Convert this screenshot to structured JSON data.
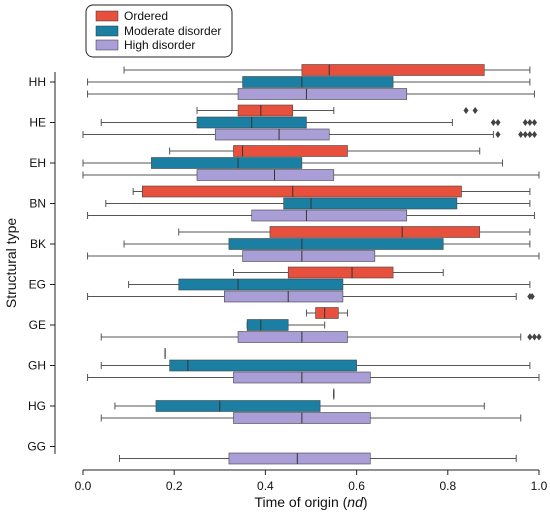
{
  "chart_data": {
    "type": "box",
    "orientation": "horizontal",
    "xlabel_main": "Time of origin (",
    "xlabel_italic": "nd",
    "xlabel_end": ")",
    "ylabel": "Structural type",
    "xlim": [
      0.0,
      1.0
    ],
    "xticks": [
      "0.0",
      "0.2",
      "0.4",
      "0.6",
      "0.8",
      "1.0"
    ],
    "xtick_values": [
      0.0,
      0.2,
      0.4,
      0.6,
      0.8,
      1.0
    ],
    "categories": [
      "HH",
      "HE",
      "EH",
      "BN",
      "BK",
      "EG",
      "GE",
      "GH",
      "HG",
      "GG"
    ],
    "legend_position": "top-left",
    "series": [
      {
        "name": "Ordered",
        "color": "#e8503e",
        "boxes": [
          {
            "category": "HH",
            "whisker_low": 0.09,
            "q1": 0.48,
            "median": 0.54,
            "q3": 0.88,
            "whisker_high": 0.98,
            "outliers": []
          },
          {
            "category": "HE",
            "whisker_low": 0.25,
            "q1": 0.34,
            "median": 0.39,
            "q3": 0.46,
            "whisker_high": 0.55,
            "outliers": [
              0.84,
              0.86
            ]
          },
          {
            "category": "EH",
            "whisker_low": 0.19,
            "q1": 0.33,
            "median": 0.35,
            "q3": 0.58,
            "whisker_high": 0.87,
            "outliers": []
          },
          {
            "category": "BN",
            "whisker_low": 0.11,
            "q1": 0.13,
            "median": 0.46,
            "q3": 0.83,
            "whisker_high": 0.98,
            "outliers": []
          },
          {
            "category": "BK",
            "whisker_low": 0.21,
            "q1": 0.41,
            "median": 0.7,
            "q3": 0.87,
            "whisker_high": 0.98,
            "outliers": []
          },
          {
            "category": "EG",
            "whisker_low": 0.33,
            "q1": 0.45,
            "median": 0.59,
            "q3": 0.68,
            "whisker_high": 0.79,
            "outliers": []
          },
          {
            "category": "GE",
            "whisker_low": 0.49,
            "q1": 0.51,
            "median": 0.53,
            "q3": 0.56,
            "whisker_high": 0.58,
            "outliers": []
          },
          {
            "category": "GH",
            "whisker_low": 0.18,
            "q1": 0.18,
            "median": 0.18,
            "q3": 0.18,
            "whisker_high": 0.18,
            "outliers": []
          },
          {
            "category": "HG",
            "whisker_low": 0.55,
            "q1": 0.55,
            "median": 0.55,
            "q3": 0.55,
            "whisker_high": 0.55,
            "outliers": []
          }
        ]
      },
      {
        "name": "Moderate disorder",
        "color": "#1a7fa3",
        "boxes": [
          {
            "category": "HH",
            "whisker_low": 0.01,
            "q1": 0.35,
            "median": 0.48,
            "q3": 0.68,
            "whisker_high": 0.98,
            "outliers": []
          },
          {
            "category": "HE",
            "whisker_low": 0.04,
            "q1": 0.25,
            "median": 0.37,
            "q3": 0.49,
            "whisker_high": 0.81,
            "outliers": [
              0.9,
              0.91,
              0.97,
              0.98,
              0.99
            ]
          },
          {
            "category": "EH",
            "whisker_low": 0.0,
            "q1": 0.15,
            "median": 0.34,
            "q3": 0.48,
            "whisker_high": 0.92,
            "outliers": []
          },
          {
            "category": "BN",
            "whisker_low": 0.05,
            "q1": 0.44,
            "median": 0.5,
            "q3": 0.82,
            "whisker_high": 0.98,
            "outliers": []
          },
          {
            "category": "BK",
            "whisker_low": 0.09,
            "q1": 0.32,
            "median": 0.48,
            "q3": 0.79,
            "whisker_high": 0.98,
            "outliers": []
          },
          {
            "category": "EG",
            "whisker_low": 0.1,
            "q1": 0.21,
            "median": 0.34,
            "q3": 0.57,
            "whisker_high": 0.98,
            "outliers": []
          },
          {
            "category": "GE",
            "whisker_low": 0.36,
            "q1": 0.36,
            "median": 0.39,
            "q3": 0.45,
            "whisker_high": 0.53,
            "outliers": []
          },
          {
            "category": "GH",
            "whisker_low": 0.04,
            "q1": 0.19,
            "median": 0.23,
            "q3": 0.6,
            "whisker_high": 0.98,
            "outliers": []
          },
          {
            "category": "HG",
            "whisker_low": 0.07,
            "q1": 0.16,
            "median": 0.3,
            "q3": 0.52,
            "whisker_high": 0.88,
            "outliers": []
          }
        ]
      },
      {
        "name": "High disorder",
        "color": "#a99ed6",
        "boxes": [
          {
            "category": "HH",
            "whisker_low": 0.01,
            "q1": 0.34,
            "median": 0.49,
            "q3": 0.71,
            "whisker_high": 0.99,
            "outliers": []
          },
          {
            "category": "HE",
            "whisker_low": 0.0,
            "q1": 0.29,
            "median": 0.43,
            "q3": 0.54,
            "whisker_high": 0.9,
            "outliers": [
              0.91,
              0.96,
              0.97,
              0.98,
              0.99
            ]
          },
          {
            "category": "EH",
            "whisker_low": 0.0,
            "q1": 0.25,
            "median": 0.42,
            "q3": 0.55,
            "whisker_high": 1.0,
            "outliers": []
          },
          {
            "category": "BN",
            "whisker_low": 0.01,
            "q1": 0.37,
            "median": 0.49,
            "q3": 0.71,
            "whisker_high": 0.99,
            "outliers": []
          },
          {
            "category": "BK",
            "whisker_low": 0.01,
            "q1": 0.35,
            "median": 0.48,
            "q3": 0.64,
            "whisker_high": 1.0,
            "outliers": []
          },
          {
            "category": "EG",
            "whisker_low": 0.01,
            "q1": 0.31,
            "median": 0.45,
            "q3": 0.57,
            "whisker_high": 0.95,
            "outliers": [
              0.98,
              0.985
            ]
          },
          {
            "category": "GE",
            "whisker_low": 0.04,
            "q1": 0.34,
            "median": 0.48,
            "q3": 0.58,
            "whisker_high": 0.96,
            "outliers": [
              0.98,
              0.99,
              1.0
            ]
          },
          {
            "category": "GH",
            "whisker_low": 0.01,
            "q1": 0.33,
            "median": 0.48,
            "q3": 0.63,
            "whisker_high": 1.0,
            "outliers": []
          },
          {
            "category": "HG",
            "whisker_low": 0.04,
            "q1": 0.33,
            "median": 0.48,
            "q3": 0.63,
            "whisker_high": 0.96,
            "outliers": []
          },
          {
            "category": "GG",
            "whisker_low": 0.08,
            "q1": 0.32,
            "median": 0.47,
            "q3": 0.63,
            "whisker_high": 0.95,
            "outliers": []
          }
        ]
      }
    ]
  }
}
